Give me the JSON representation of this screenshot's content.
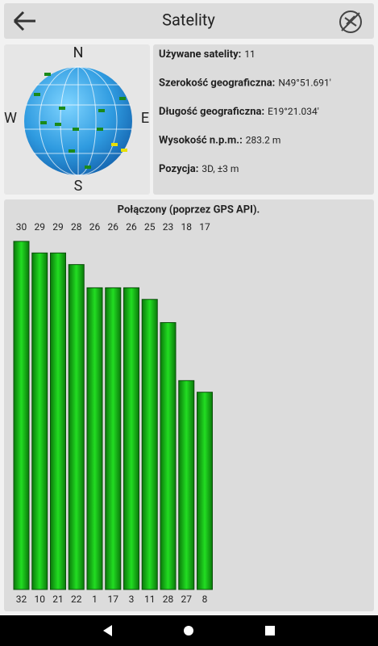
{
  "header": {
    "title": "Satelity"
  },
  "compass": {
    "n": "N",
    "w": "W",
    "e": "E",
    "s": "S"
  },
  "info": [
    {
      "label": "Używane satelity:",
      "value": "11"
    },
    {
      "label": "Szerokość geograficzna:",
      "value": "N49°51.691'"
    },
    {
      "label": "Długość geograficzna:",
      "value": "E19°21.034'"
    },
    {
      "label": "Wysokość n.p.m.:",
      "value": "283.2 m"
    },
    {
      "label": "Pozycja:",
      "value": "3D, ±3 m"
    }
  ],
  "chart_data": {
    "type": "bar",
    "title": "Połączony (poprzez GPS API).",
    "categories": [
      32,
      10,
      21,
      22,
      1,
      17,
      3,
      11,
      28,
      27,
      8
    ],
    "values": [
      30,
      29,
      29,
      28,
      26,
      26,
      26,
      25,
      23,
      18,
      17
    ],
    "color": "#1fc41f"
  }
}
